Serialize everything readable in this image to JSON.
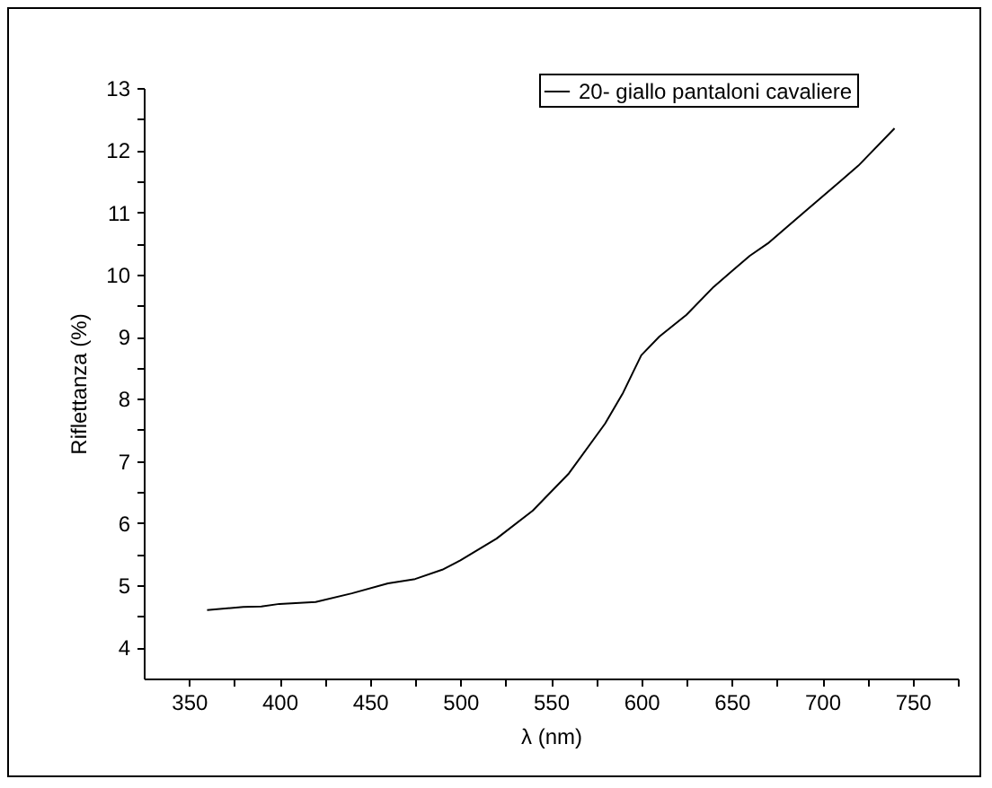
{
  "chart_data": {
    "type": "line",
    "xlabel": "λ (nm)",
    "ylabel": "Riflettanza (%)",
    "x": [
      360,
      380,
      390,
      400,
      420,
      440,
      460,
      475,
      490,
      500,
      520,
      540,
      560,
      580,
      590,
      600,
      610,
      625,
      640,
      650,
      660,
      670,
      690,
      710,
      720,
      740
    ],
    "series": [
      {
        "name": "20- giallo pantaloni cavaliere",
        "color": "#000000",
        "values": [
          4.6,
          4.65,
          4.66,
          4.7,
          4.73,
          4.87,
          5.03,
          5.1,
          5.25,
          5.4,
          5.75,
          6.2,
          6.8,
          7.6,
          8.1,
          8.7,
          9.0,
          9.35,
          9.8,
          10.05,
          10.3,
          10.5,
          11.0,
          11.5,
          11.75,
          12.35
        ]
      }
    ],
    "xlim": [
      325,
      775
    ],
    "ylim": [
      3.5,
      13
    ],
    "xticks": [
      350,
      {
        "value": 375,
        "label": null
      },
      400,
      {
        "value": 425,
        "label": null
      },
      450,
      {
        "value": 475,
        "label": null
      },
      500,
      {
        "value": 525,
        "label": null
      },
      550,
      {
        "value": 575,
        "label": null
      },
      600,
      {
        "value": 625,
        "label": null
      },
      650,
      {
        "value": 675,
        "label": null
      },
      700,
      {
        "value": 725,
        "label": null
      },
      750,
      {
        "value": 775,
        "label": null
      }
    ],
    "yticks": [
      4,
      {
        "value": 4.5,
        "label": null
      },
      5,
      {
        "value": 5.5,
        "label": null
      },
      6,
      {
        "value": 6.5,
        "label": null
      },
      7,
      {
        "value": 7.5,
        "label": null
      },
      8,
      {
        "value": 8.5,
        "label": null
      },
      9,
      {
        "value": 9.5,
        "label": null
      },
      10,
      {
        "value": 10.5,
        "label": null
      },
      11,
      {
        "value": 11.5,
        "label": null
      },
      12,
      {
        "value": 12.5,
        "label": null
      },
      13
    ],
    "grid": false,
    "legend": "top right",
    "marker": "none",
    "line_style": "solid"
  }
}
